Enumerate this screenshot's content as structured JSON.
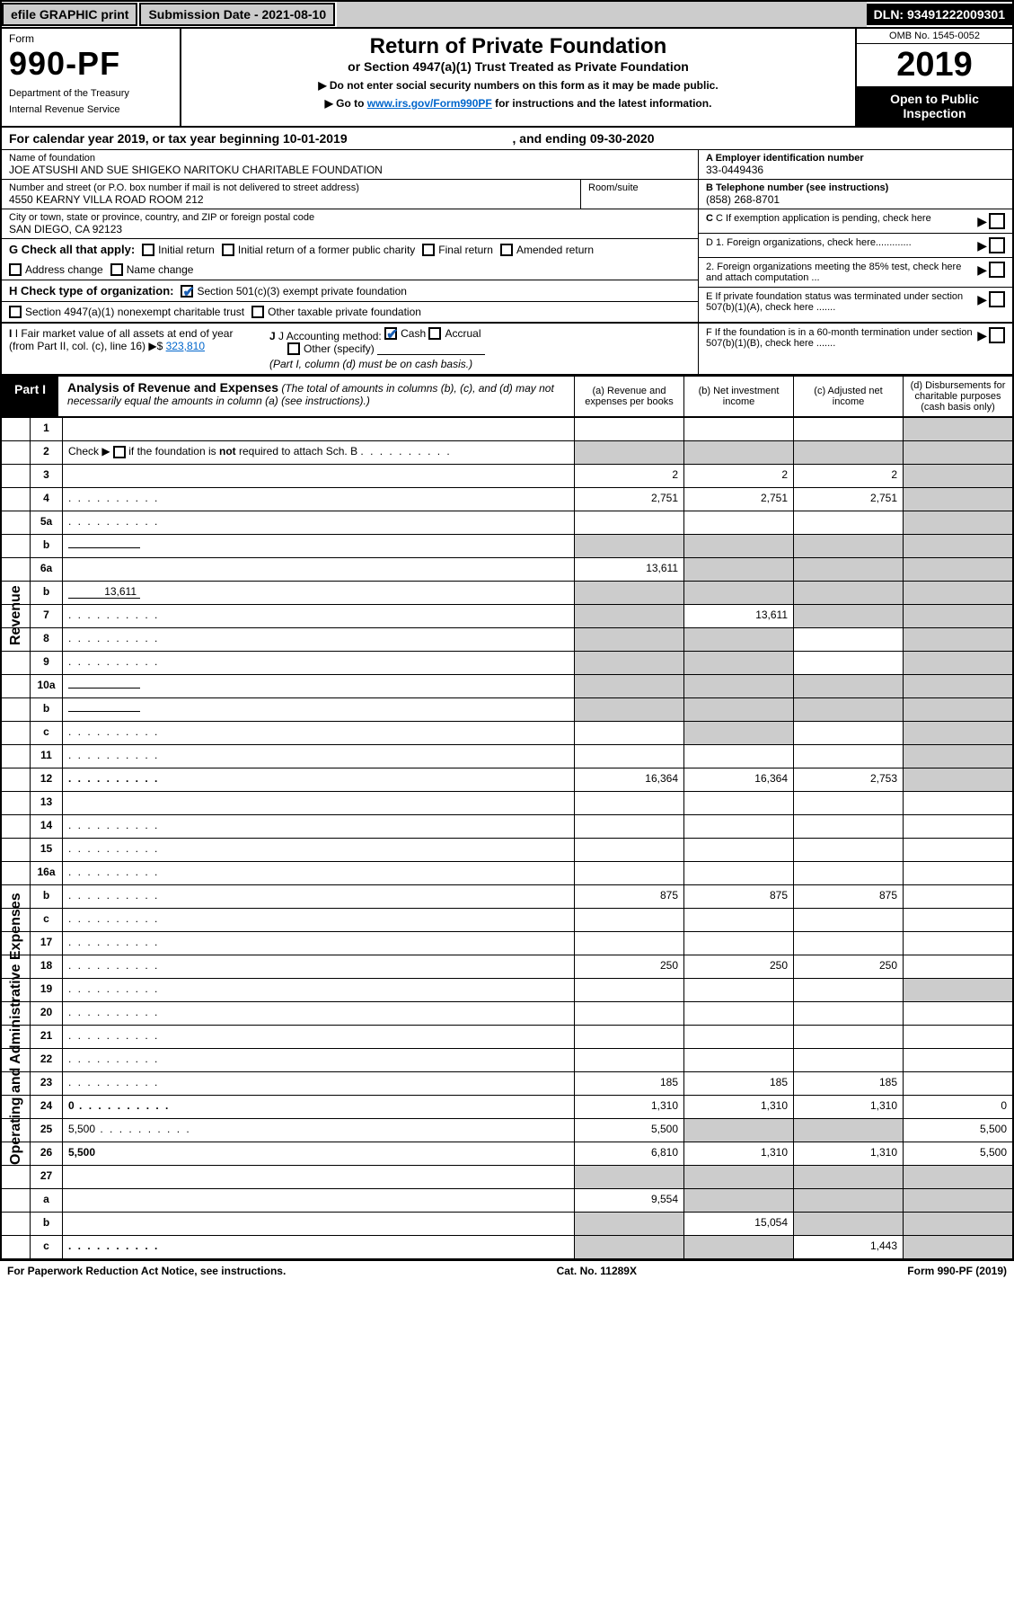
{
  "topbar": {
    "efile": "efile GRAPHIC print",
    "subdate_label": "Submission Date - 2021-08-10",
    "dln": "DLN: 93491222009301"
  },
  "header": {
    "form": "Form",
    "number": "990-PF",
    "dept": "Department of the Treasury",
    "irs": "Internal Revenue Service",
    "title": "Return of Private Foundation",
    "subtitle": "or Section 4947(a)(1) Trust Treated as Private Foundation",
    "instr1": "▶ Do not enter social security numbers on this form as it may be made public.",
    "instr2": "▶ Go to ",
    "instr2_link": "www.irs.gov/Form990PF",
    "instr2_tail": " for instructions and the latest information.",
    "omb": "OMB No. 1545-0052",
    "year": "2019",
    "open": "Open to Public Inspection"
  },
  "calendar": {
    "prefix": "For calendar year 2019, or tax year beginning ",
    "begin": "10-01-2019",
    "mid": " , and ending ",
    "end": "09-30-2020"
  },
  "entity": {
    "name_label": "Name of foundation",
    "name": "JOE ATSUSHI AND SUE SHIGEKO NARITOKU CHARITABLE FOUNDATION",
    "addr_label": "Number and street (or P.O. box number if mail is not delivered to street address)",
    "addr": "4550 KEARNY VILLA ROAD Room 212",
    "suite_label": "Room/suite",
    "city_label": "City or town, state or province, country, and ZIP or foreign postal code",
    "city": "SAN DIEGO, CA  92123",
    "ein_label": "A Employer identification number",
    "ein": "33-0449436",
    "phone_label": "B Telephone number (see instructions)",
    "phone": "(858) 268-8701",
    "c_label": "C If exemption application is pending, check here",
    "d1": "D 1. Foreign organizations, check here.............",
    "d2": "2. Foreign organizations meeting the 85% test, check here and attach computation ...",
    "e": "E If private foundation status was terminated under section 507(b)(1)(A), check here .......",
    "f": "F If the foundation is in a 60-month termination under section 507(b)(1)(B), check here ......."
  },
  "checks": {
    "g_label": "G Check all that apply:",
    "g_opts": [
      "Initial return",
      "Initial return of a former public charity",
      "Final return",
      "Amended return",
      "Address change",
      "Name change"
    ],
    "h_label": "H Check type of organization:",
    "h_501": "Section 501(c)(3) exempt private foundation",
    "h_4947": "Section 4947(a)(1) nonexempt charitable trust",
    "h_other": "Other taxable private foundation",
    "i_label": "I Fair market value of all assets at end of year (from Part II, col. (c), line 16) ▶$ ",
    "i_val": "323,810",
    "j_label": "J Accounting method:",
    "j_cash": "Cash",
    "j_accrual": "Accrual",
    "j_other": "Other (specify)",
    "j_note": "(Part I, column (d) must be on cash basis.)"
  },
  "part1": {
    "tab": "Part I",
    "title": "Analysis of Revenue and Expenses",
    "note": "(The total of amounts in columns (b), (c), and (d) may not necessarily equal the amounts in column (a) (see instructions).)",
    "cols": {
      "a": "(a) Revenue and expenses per books",
      "b": "(b) Net investment income",
      "c": "(c) Adjusted net income",
      "d": "(d) Disbursements for charitable purposes (cash basis only)"
    }
  },
  "side_labels": {
    "rev": "Revenue",
    "exp": "Operating and Administrative Expenses"
  },
  "rows": [
    {
      "n": "1",
      "d": "",
      "a": "",
      "b": "",
      "c": "",
      "dgrey": true
    },
    {
      "n": "2",
      "d": "",
      "a": "",
      "b": "",
      "c": "",
      "allgrey": true,
      "html": true
    },
    {
      "n": "3",
      "d": "",
      "a": "2",
      "b": "2",
      "c": "2",
      "dgrey": true
    },
    {
      "n": "4",
      "d": "",
      "a": "2,751",
      "b": "2,751",
      "c": "2,751",
      "dgrey": true,
      "dots": true
    },
    {
      "n": "5a",
      "d": "",
      "a": "",
      "b": "",
      "c": "",
      "dgrey": true,
      "dots": true
    },
    {
      "n": "b",
      "d": "",
      "a": "",
      "b": "",
      "c": "",
      "allgrey": true,
      "inline": true
    },
    {
      "n": "6a",
      "d": "",
      "a": "13,611",
      "b": "",
      "c": "",
      "bcgrey": true,
      "dgrey": true
    },
    {
      "n": "b",
      "d": "",
      "a": "",
      "b": "",
      "c": "",
      "allgrey": true,
      "inline": true,
      "inlineval": "13,611"
    },
    {
      "n": "7",
      "d": "",
      "a": "",
      "b": "13,611",
      "c": "",
      "agrey": true,
      "cgrey": true,
      "dgrey": true,
      "dots": true
    },
    {
      "n": "8",
      "d": "",
      "a": "",
      "b": "",
      "c": "",
      "agrey": true,
      "bgrey": true,
      "dgrey": true,
      "dots": true
    },
    {
      "n": "9",
      "d": "",
      "a": "",
      "b": "",
      "c": "",
      "agrey": true,
      "bgrey": true,
      "dgrey": true,
      "dots": true
    },
    {
      "n": "10a",
      "d": "",
      "a": "",
      "b": "",
      "c": "",
      "allgrey": true,
      "inline": true
    },
    {
      "n": "b",
      "d": "",
      "a": "",
      "b": "",
      "c": "",
      "allgrey": true,
      "inline": true,
      "dots": true
    },
    {
      "n": "c",
      "d": "",
      "a": "",
      "b": "",
      "c": "",
      "bgrey": true,
      "dgrey": true,
      "dots": true
    },
    {
      "n": "11",
      "d": "",
      "a": "",
      "b": "",
      "c": "",
      "dgrey": true,
      "dots": true
    },
    {
      "n": "12",
      "d": "",
      "a": "16,364",
      "b": "16,364",
      "c": "2,753",
      "dgrey": true,
      "bold": true,
      "dots": true
    },
    {
      "n": "13",
      "d": "",
      "a": "",
      "b": "",
      "c": ""
    },
    {
      "n": "14",
      "d": "",
      "a": "",
      "b": "",
      "c": "",
      "dots": true
    },
    {
      "n": "15",
      "d": "",
      "a": "",
      "b": "",
      "c": "",
      "dots": true
    },
    {
      "n": "16a",
      "d": "",
      "a": "",
      "b": "",
      "c": "",
      "dots": true
    },
    {
      "n": "b",
      "d": "",
      "a": "875",
      "b": "875",
      "c": "875",
      "dots": true
    },
    {
      "n": "c",
      "d": "",
      "a": "",
      "b": "",
      "c": "",
      "dots": true
    },
    {
      "n": "17",
      "d": "",
      "a": "",
      "b": "",
      "c": "",
      "dots": true
    },
    {
      "n": "18",
      "d": "",
      "a": "250",
      "b": "250",
      "c": "250",
      "dots": true
    },
    {
      "n": "19",
      "d": "",
      "a": "",
      "b": "",
      "c": "",
      "dgrey": true,
      "dots": true
    },
    {
      "n": "20",
      "d": "",
      "a": "",
      "b": "",
      "c": "",
      "dots": true
    },
    {
      "n": "21",
      "d": "",
      "a": "",
      "b": "",
      "c": "",
      "dots": true
    },
    {
      "n": "22",
      "d": "",
      "a": "",
      "b": "",
      "c": "",
      "dots": true
    },
    {
      "n": "23",
      "d": "",
      "a": "185",
      "b": "185",
      "c": "185",
      "dots": true
    },
    {
      "n": "24",
      "d": "0",
      "a": "1,310",
      "b": "1,310",
      "c": "1,310",
      "bold": true,
      "dots": true
    },
    {
      "n": "25",
      "d": "5,500",
      "a": "5,500",
      "b": "",
      "c": "",
      "bgrey": true,
      "cgrey": true,
      "dots": true
    },
    {
      "n": "26",
      "d": "5,500",
      "a": "6,810",
      "b": "1,310",
      "c": "1,310",
      "bold": true
    },
    {
      "n": "27",
      "d": "",
      "a": "",
      "b": "",
      "c": "",
      "allgrey": true
    },
    {
      "n": "a",
      "d": "",
      "a": "9,554",
      "b": "",
      "c": "",
      "bgrey": true,
      "cgrey": true,
      "dgrey": true,
      "bold": true
    },
    {
      "n": "b",
      "d": "",
      "a": "",
      "b": "15,054",
      "c": "",
      "agrey": true,
      "cgrey": true,
      "dgrey": true,
      "bold": true
    },
    {
      "n": "c",
      "d": "",
      "a": "",
      "b": "",
      "c": "1,443",
      "agrey": true,
      "bgrey": true,
      "dgrey": true,
      "bold": true,
      "dots": true
    }
  ],
  "footer": {
    "left": "For Paperwork Reduction Act Notice, see instructions.",
    "mid": "Cat. No. 11289X",
    "right": "Form 990-PF (2019)"
  }
}
